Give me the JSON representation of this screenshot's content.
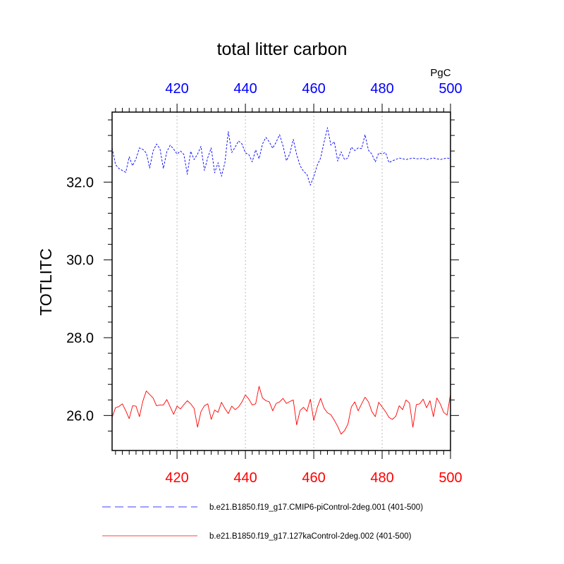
{
  "chart_data": {
    "type": "line",
    "title": "total litter carbon",
    "units": "PgC",
    "ylabel": "TOTLITC",
    "ylim": [
      25.1,
      33.8
    ],
    "yticks": [
      26.0,
      28.0,
      30.0,
      32.0
    ],
    "ytick_labels": [
      "26.0",
      "28.0",
      "30.0",
      "32.0"
    ],
    "xlim_bottom": [
      401,
      500
    ],
    "xlim_top": [
      401,
      500
    ],
    "xticks": [
      420,
      440,
      460,
      480,
      500
    ],
    "xtick_labels": [
      "420",
      "440",
      "460",
      "480",
      "500"
    ],
    "grid": "vertical dotted",
    "legend_position": "bottom",
    "colors": {
      "top_axis": "#0000ff",
      "bottom_axis": "#ff0000",
      "frame": "#000000",
      "grid": "#bbbbbb"
    },
    "series": [
      {
        "name": "b.e21.B1850.f19_g17.CMIP6-piControl-2deg.001 (401-500)",
        "x_axis": "top",
        "color": "#0000ff",
        "dash": "dashed",
        "x_start": 401,
        "values": [
          32.88,
          32.45,
          32.35,
          32.3,
          32.25,
          32.65,
          32.42,
          32.6,
          32.88,
          32.84,
          32.75,
          32.36,
          32.8,
          32.98,
          32.86,
          32.35,
          32.78,
          32.95,
          32.85,
          32.72,
          32.8,
          32.71,
          32.2,
          32.79,
          32.58,
          32.72,
          32.92,
          32.3,
          32.63,
          32.88,
          32.24,
          32.5,
          32.15,
          32.5,
          33.3,
          32.76,
          32.9,
          33.06,
          32.98,
          32.75,
          32.71,
          32.52,
          32.83,
          32.6,
          32.98,
          33.15,
          33.03,
          32.87,
          33.03,
          33.22,
          32.93,
          32.55,
          32.73,
          33.1,
          32.71,
          32.42,
          32.28,
          32.2,
          31.92,
          32.14,
          32.43,
          32.62,
          33.02,
          33.4,
          32.95,
          33.04,
          32.54,
          32.78,
          32.58,
          32.62,
          32.9,
          32.81,
          32.88,
          32.86,
          33.22,
          32.82,
          32.72,
          32.52,
          32.75,
          32.73,
          32.76,
          32.5,
          32.55,
          32.58,
          32.62,
          32.6,
          32.58,
          32.6,
          32.62,
          32.6,
          32.6,
          32.62,
          32.58,
          32.6,
          32.62,
          32.6,
          32.58,
          32.6,
          32.62,
          32.6
        ]
      },
      {
        "name": "b.e21.B1850.f19_g17.127kaControl-2deg.002 (401-500)",
        "x_axis": "bottom",
        "color": "#ff0000",
        "dash": "solid",
        "x_start": 401,
        "values": [
          25.95,
          26.2,
          26.23,
          26.3,
          26.12,
          25.92,
          26.25,
          26.24,
          25.97,
          26.37,
          26.63,
          26.54,
          26.45,
          26.25,
          26.27,
          26.27,
          26.41,
          26.22,
          26.03,
          26.24,
          26.17,
          26.28,
          26.38,
          26.3,
          26.18,
          25.7,
          26.1,
          26.25,
          26.3,
          25.9,
          26.14,
          26.08,
          26.34,
          26.18,
          26.05,
          26.24,
          26.15,
          26.22,
          26.35,
          26.53,
          26.42,
          26.27,
          26.3,
          26.75,
          26.45,
          26.38,
          26.35,
          26.12,
          26.31,
          26.35,
          26.44,
          26.31,
          26.36,
          26.4,
          25.76,
          26.13,
          26.21,
          26.11,
          26.42,
          25.87,
          26.2,
          26.44,
          26.19,
          26.07,
          26.02,
          25.88,
          25.72,
          25.52,
          25.61,
          25.78,
          26.22,
          26.35,
          26.12,
          26.3,
          26.47,
          26.35,
          26.1,
          25.97,
          26.34,
          26.22,
          26.1,
          25.95,
          25.9,
          25.98,
          26.25,
          26.15,
          26.4,
          26.32,
          25.7,
          26.28,
          26.3,
          26.42,
          26.2,
          26.38,
          25.97,
          26.45,
          26.3,
          26.08,
          26.01,
          26.55
        ]
      }
    ]
  }
}
